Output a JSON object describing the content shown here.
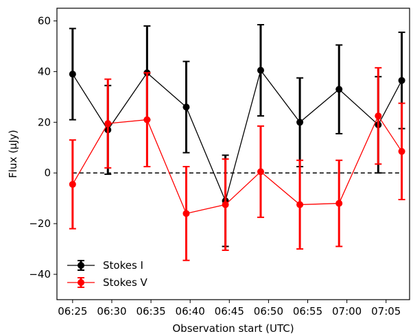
{
  "chart_data": {
    "type": "line",
    "xlabel": "Observation start (UTC)",
    "ylabel": "Flux (μJy)",
    "x_tick_labels": [
      "06:25",
      "06:30",
      "06:35",
      "06:40",
      "06:45",
      "06:50",
      "06:55",
      "07:00",
      "07:05"
    ],
    "x_tick_values": [
      "06:25",
      "06:30",
      "06:35",
      "06:40",
      "06:45",
      "06:50",
      "06:55",
      "07:00",
      "07:05"
    ],
    "xlim": [
      "06:23",
      "07:08"
    ],
    "y_ticks": [
      -40,
      -20,
      0,
      20,
      40,
      60
    ],
    "ylim": [
      -50,
      65
    ],
    "grid": false,
    "legend_position": "lower-left",
    "reference_line": {
      "y": 0,
      "style": "dashed",
      "color": "#000000"
    },
    "series": [
      {
        "name": "Stokes I",
        "color": "#000000",
        "x": [
          "06:25",
          "06:29:30",
          "06:34:30",
          "06:39:30",
          "06:44:30",
          "06:49:00",
          "06:54:00",
          "06:59:00",
          "07:04:00",
          "07:07:00"
        ],
        "y": [
          39,
          17,
          39.5,
          26,
          -11,
          40.5,
          20,
          33,
          19,
          36.5
        ],
        "yerr": [
          18,
          17.5,
          18.5,
          18,
          18,
          18,
          17.5,
          17.5,
          19,
          19
        ]
      },
      {
        "name": "Stokes V",
        "color": "#ff0000",
        "x": [
          "06:25",
          "06:29:30",
          "06:34:30",
          "06:39:30",
          "06:44:30",
          "06:49:00",
          "06:54:00",
          "06:59:00",
          "07:04:00",
          "07:07:00"
        ],
        "y": [
          -4.5,
          19.5,
          21,
          -16,
          -12.5,
          0.5,
          -12.5,
          -12,
          22.5,
          8.5
        ],
        "yerr": [
          17.5,
          17.5,
          18.5,
          18.5,
          18,
          18,
          17.5,
          17,
          19,
          19
        ]
      }
    ]
  }
}
